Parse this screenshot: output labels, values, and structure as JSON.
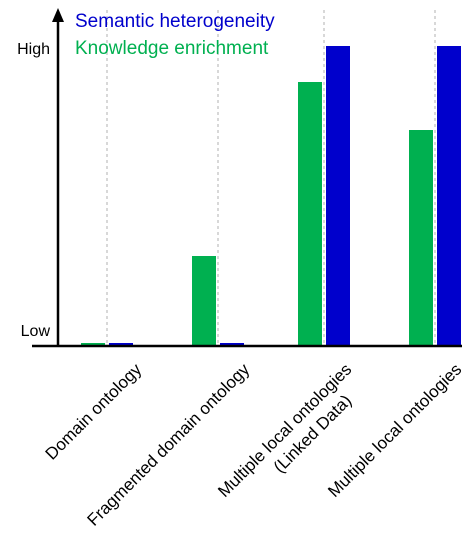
{
  "chart_data": {
    "type": "bar",
    "categories": [
      [
        "Domain ontology"
      ],
      [
        "Fragmented domain ontology"
      ],
      [
        "Multiple local ontologies",
        "(Linked Data)"
      ],
      [
        "Multiple local ontologies"
      ]
    ],
    "series": [
      {
        "name": "Knowledge enrichment",
        "color": "#00b050",
        "values": [
          0.01,
          0.3,
          0.88,
          0.72
        ]
      },
      {
        "name": "Semantic heterogeneity",
        "color": "#0000cc",
        "values": [
          0.01,
          0.01,
          1.0,
          1.0
        ]
      }
    ],
    "legend": {
      "order": [
        "Semantic heterogeneity",
        "Knowledge enrichment"
      ],
      "placement": "top-left"
    },
    "ylim": [
      0,
      1
    ],
    "y_tick_labels": {
      "high": "High",
      "low": "Low"
    },
    "grid": "vertical dashed separators between categories",
    "axis_color": "#000000",
    "grid_color": "#b0b0b0"
  }
}
